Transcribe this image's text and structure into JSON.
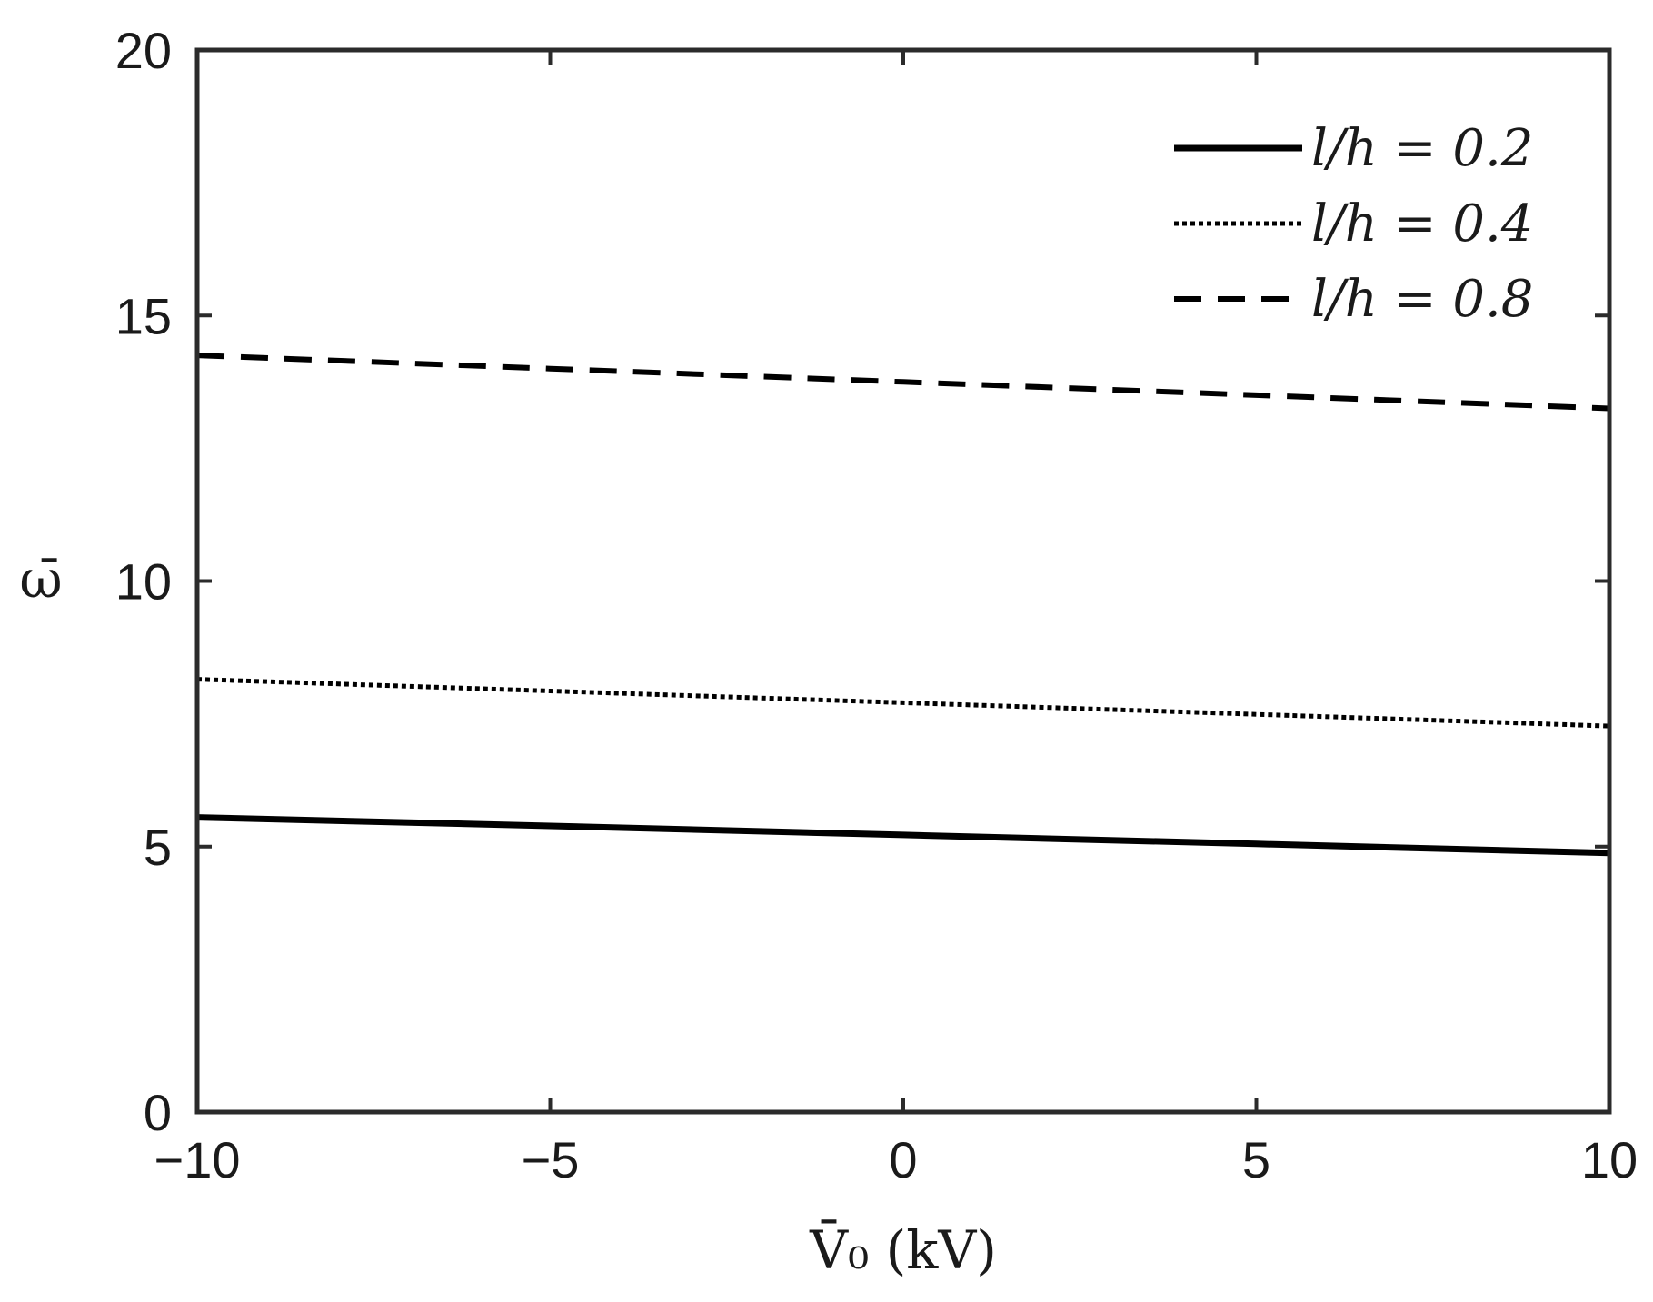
{
  "chart_data": {
    "type": "line",
    "title": "",
    "xlabel": "V̄₀ (kV)",
    "ylabel": "ω̄",
    "xlim": [
      -10,
      10
    ],
    "ylim": [
      0,
      20
    ],
    "x_ticks": [
      -10,
      -5,
      0,
      5,
      10
    ],
    "x_tick_labels": [
      "−10",
      "−5",
      "0",
      "5",
      "10"
    ],
    "y_ticks": [
      0,
      5,
      10,
      15,
      20
    ],
    "y_tick_labels": [
      "0",
      "5",
      "10",
      "15",
      "20"
    ],
    "grid": false,
    "legend_position": "top-right",
    "x": [
      -10,
      -5,
      0,
      5,
      10
    ],
    "series": [
      {
        "name": "l/h = 0.2",
        "style": "solid",
        "color": "#000000",
        "values": [
          5.55,
          5.39,
          5.22,
          5.05,
          4.88
        ]
      },
      {
        "name": "l/h = 0.4",
        "style": "dotted",
        "color": "#000000",
        "values": [
          8.15,
          7.93,
          7.71,
          7.49,
          7.27
        ]
      },
      {
        "name": "l/h = 0.8",
        "style": "dashed",
        "color": "#000000",
        "values": [
          14.25,
          14.0,
          13.75,
          13.5,
          13.25
        ]
      }
    ]
  }
}
